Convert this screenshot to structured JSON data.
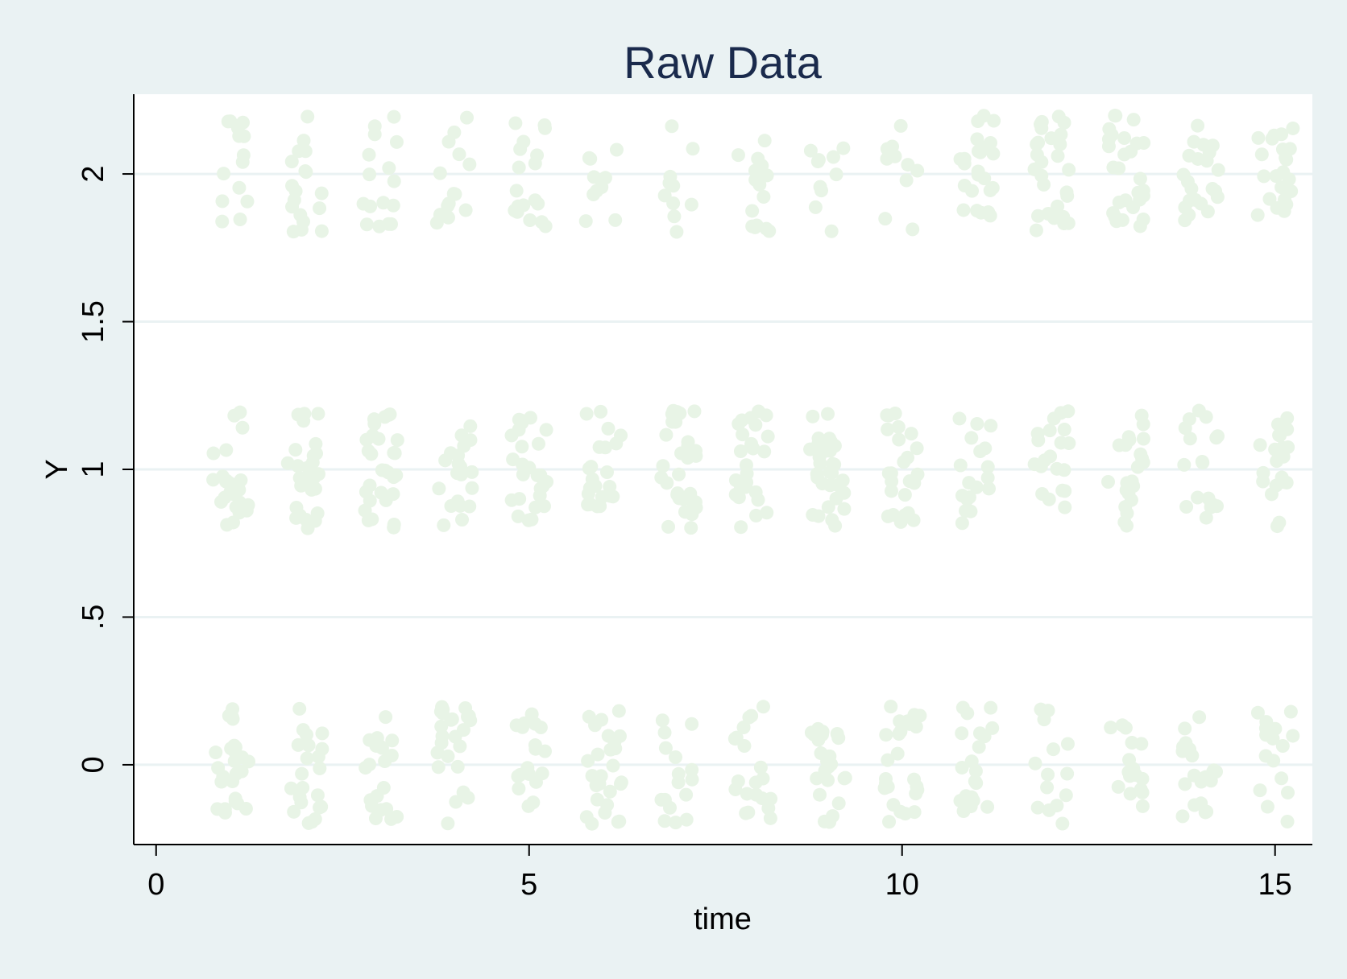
{
  "colors": {
    "background": "#eaf2f3",
    "plot_background": "#ffffff",
    "gridline": "#eaf2f3",
    "marker": "#e8f4e6",
    "title": "#1a2a4c",
    "axis": "#000000"
  },
  "chart_data": {
    "type": "scatter",
    "title": "Raw Data",
    "xlabel": "time",
    "ylabel": "Y",
    "xlim": [
      -0.3,
      15.5
    ],
    "ylim": [
      -0.27,
      2.27
    ],
    "x_ticks": [
      {
        "value": 0,
        "label": "0"
      },
      {
        "value": 5,
        "label": "5"
      },
      {
        "value": 10,
        "label": "10"
      },
      {
        "value": 15,
        "label": "15"
      }
    ],
    "y_ticks": [
      {
        "value": 0,
        "label": "0"
      },
      {
        "value": 0.5,
        "label": ".5"
      },
      {
        "value": 1,
        "label": "1"
      },
      {
        "value": 1.5,
        "label": "1.5"
      },
      {
        "value": 2,
        "label": "2"
      }
    ],
    "grid": "horizontal",
    "legend": "none",
    "marker": "jittered filled circles",
    "categories_y": [
      0,
      1,
      2
    ],
    "times": [
      1,
      2,
      3,
      4,
      5,
      6,
      7,
      8,
      9,
      10,
      11,
      12,
      13,
      14,
      15
    ],
    "jitter": {
      "x": 0.24,
      "y": 0.2
    },
    "counts": {
      "y0": [
        26,
        22,
        20,
        24,
        18,
        26,
        16,
        20,
        24,
        26,
        20,
        14,
        16,
        20,
        16
      ],
      "y1": [
        24,
        28,
        30,
        20,
        26,
        22,
        30,
        26,
        32,
        24,
        18,
        20,
        22,
        18,
        22
      ],
      "y2": [
        14,
        18,
        16,
        14,
        18,
        10,
        10,
        16,
        10,
        10,
        24,
        28,
        28,
        22,
        22
      ]
    }
  }
}
